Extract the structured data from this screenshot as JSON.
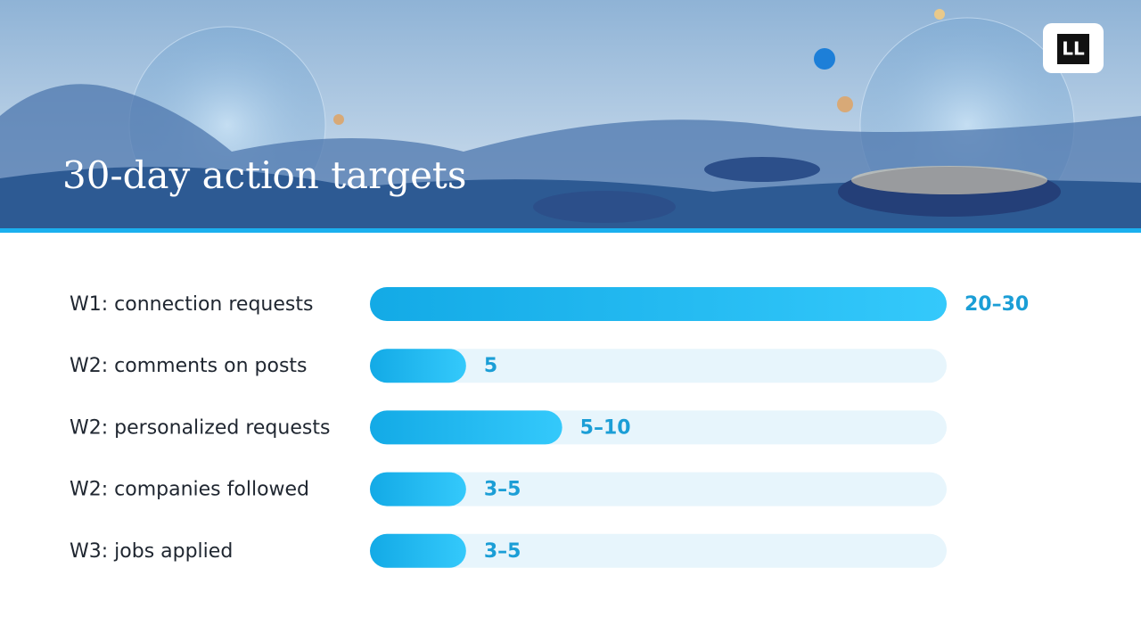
{
  "chart_data": {
    "type": "bar",
    "orientation": "horizontal",
    "title": "30-day action targets",
    "categories": [
      "W1: connection requests",
      "W2: comments on posts",
      "W2: personalized requests",
      "W2: companies followed",
      "W3: jobs applied"
    ],
    "values": [
      30,
      5,
      10,
      5,
      5
    ],
    "value_labels": [
      "20–30",
      "5",
      "5–10",
      "3–5",
      "3–5"
    ],
    "color": "#1cb4f0"
  },
  "logo": "LL"
}
